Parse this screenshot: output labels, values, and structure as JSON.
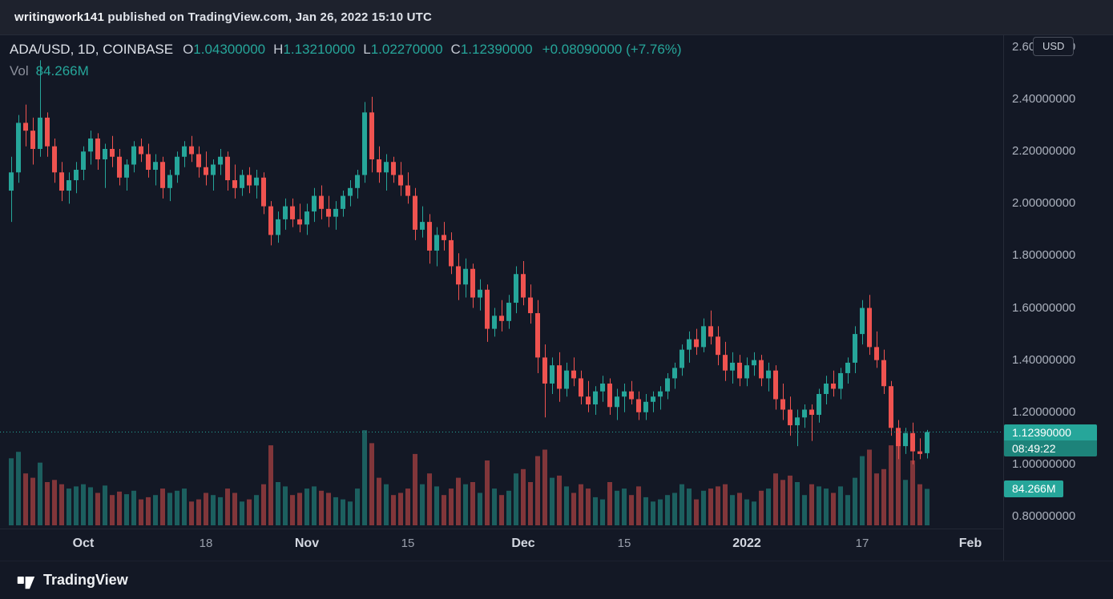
{
  "publish_bar": {
    "username": "writingwork141",
    "text_rest": " published on TradingView.com, Jan 26, 2022 15:10 UTC"
  },
  "header": {
    "symbol": "ADA/USD, 1D, COINBASE",
    "ohlc": [
      {
        "label": "O",
        "value": "1.04300000"
      },
      {
        "label": "H",
        "value": "1.13210000"
      },
      {
        "label": "L",
        "value": "1.02270000"
      },
      {
        "label": "C",
        "value": "1.12390000"
      }
    ],
    "change": "+0.08090000 (+7.76%)",
    "vol_label": "Vol",
    "vol_value": "84.266M"
  },
  "price_axis": {
    "currency_button": "USD",
    "price_badge": {
      "price": "1.12390000",
      "countdown": "08:49:22"
    },
    "volume_badge": "84.266M"
  },
  "footer": {
    "brand": "TradingView"
  },
  "colors": {
    "up": "#26a69a",
    "down": "#ef5350",
    "countdown_bg": "#1d837a",
    "background": "#131825",
    "topbar_background": "#1e222d",
    "axis_text": "#abb1bd"
  },
  "chart_data": {
    "type": "candlestick",
    "title": "ADA/USD, 1D, COINBASE",
    "symbol": "ADA/USD",
    "interval": "1D",
    "exchange": "COINBASE",
    "ylabel": "USD",
    "price_range": [
      0.8,
      2.6
    ],
    "last_close": 1.1239,
    "last_volume_label": "84.266M",
    "price_ticks": [
      {
        "label": "2.60000000",
        "price": 2.6
      },
      {
        "label": "2.40000000",
        "price": 2.4
      },
      {
        "label": "2.20000000",
        "price": 2.2
      },
      {
        "label": "2.00000000",
        "price": 2.0
      },
      {
        "label": "1.80000000",
        "price": 1.8
      },
      {
        "label": "1.60000000",
        "price": 1.6
      },
      {
        "label": "1.40000000",
        "price": 1.4
      },
      {
        "label": "1.20000000",
        "price": 1.2
      },
      {
        "label": "1.00000000",
        "price": 1.0
      },
      {
        "label": "0.80000000",
        "price": 0.8
      }
    ],
    "time_ticks": [
      {
        "label": "Oct",
        "index": 10,
        "major": true
      },
      {
        "label": "18",
        "index": 27,
        "major": false
      },
      {
        "label": "Nov",
        "index": 41,
        "major": true
      },
      {
        "label": "15",
        "index": 55,
        "major": false
      },
      {
        "label": "Dec",
        "index": 71,
        "major": true
      },
      {
        "label": "15",
        "index": 85,
        "major": false
      },
      {
        "label": "2022",
        "index": 102,
        "major": true
      },
      {
        "label": "17",
        "index": 118,
        "major": false
      },
      {
        "label": "Feb",
        "index": 133,
        "major": true
      }
    ],
    "candles_format": [
      "open",
      "high",
      "low",
      "close",
      "volume_millions"
    ],
    "candles": [
      [
        2.05,
        2.18,
        1.93,
        2.12,
        155
      ],
      [
        2.12,
        2.34,
        2.08,
        2.31,
        170
      ],
      [
        2.31,
        2.38,
        2.22,
        2.28,
        120
      ],
      [
        2.28,
        2.33,
        2.15,
        2.21,
        110
      ],
      [
        2.21,
        2.55,
        2.18,
        2.33,
        145
      ],
      [
        2.33,
        2.35,
        2.18,
        2.22,
        100
      ],
      [
        2.22,
        2.25,
        2.08,
        2.12,
        105
      ],
      [
        2.12,
        2.16,
        2.01,
        2.05,
        95
      ],
      [
        2.05,
        2.12,
        2.0,
        2.09,
        85
      ],
      [
        2.09,
        2.16,
        2.04,
        2.13,
        90
      ],
      [
        2.13,
        2.22,
        2.09,
        2.2,
        95
      ],
      [
        2.2,
        2.28,
        2.15,
        2.25,
        88
      ],
      [
        2.25,
        2.27,
        2.13,
        2.17,
        75
      ],
      [
        2.17,
        2.23,
        2.06,
        2.21,
        92
      ],
      [
        2.21,
        2.26,
        2.14,
        2.18,
        70
      ],
      [
        2.18,
        2.21,
        2.07,
        2.1,
        78
      ],
      [
        2.1,
        2.17,
        2.05,
        2.15,
        72
      ],
      [
        2.15,
        2.24,
        2.12,
        2.22,
        80
      ],
      [
        2.22,
        2.25,
        2.16,
        2.19,
        60
      ],
      [
        2.19,
        2.23,
        2.1,
        2.13,
        65
      ],
      [
        2.13,
        2.19,
        2.07,
        2.16,
        70
      ],
      [
        2.16,
        2.18,
        2.02,
        2.06,
        85
      ],
      [
        2.06,
        2.13,
        2.01,
        2.11,
        75
      ],
      [
        2.11,
        2.2,
        2.08,
        2.18,
        80
      ],
      [
        2.18,
        2.24,
        2.14,
        2.22,
        85
      ],
      [
        2.22,
        2.26,
        2.16,
        2.19,
        55
      ],
      [
        2.19,
        2.22,
        2.1,
        2.14,
        60
      ],
      [
        2.14,
        2.2,
        2.07,
        2.11,
        75
      ],
      [
        2.11,
        2.17,
        2.05,
        2.15,
        70
      ],
      [
        2.15,
        2.21,
        2.11,
        2.18,
        65
      ],
      [
        2.18,
        2.2,
        2.05,
        2.09,
        85
      ],
      [
        2.09,
        2.15,
        2.02,
        2.06,
        75
      ],
      [
        2.06,
        2.13,
        2.03,
        2.11,
        55
      ],
      [
        2.11,
        2.14,
        2.04,
        2.07,
        60
      ],
      [
        2.07,
        2.13,
        2.02,
        2.1,
        70
      ],
      [
        2.1,
        2.12,
        1.96,
        1.99,
        95
      ],
      [
        1.99,
        2.01,
        1.84,
        1.88,
        185
      ],
      [
        1.88,
        1.97,
        1.85,
        1.94,
        100
      ],
      [
        1.94,
        2.02,
        1.9,
        1.99,
        90
      ],
      [
        1.99,
        2.02,
        1.91,
        1.94,
        70
      ],
      [
        1.94,
        2.0,
        1.89,
        1.92,
        75
      ],
      [
        1.92,
        2.0,
        1.88,
        1.97,
        85
      ],
      [
        1.97,
        2.06,
        1.93,
        2.03,
        90
      ],
      [
        2.03,
        2.07,
        1.94,
        1.98,
        80
      ],
      [
        1.98,
        2.03,
        1.91,
        1.95,
        75
      ],
      [
        1.95,
        2.01,
        1.9,
        1.98,
        65
      ],
      [
        1.98,
        2.05,
        1.95,
        2.03,
        60
      ],
      [
        2.03,
        2.09,
        1.99,
        2.06,
        55
      ],
      [
        2.06,
        2.13,
        2.02,
        2.11,
        85
      ],
      [
        2.11,
        2.39,
        2.08,
        2.35,
        220
      ],
      [
        2.35,
        2.41,
        2.12,
        2.17,
        190
      ],
      [
        2.17,
        2.22,
        2.08,
        2.12,
        110
      ],
      [
        2.12,
        2.19,
        2.05,
        2.16,
        95
      ],
      [
        2.16,
        2.18,
        2.08,
        2.11,
        70
      ],
      [
        2.11,
        2.16,
        2.03,
        2.07,
        75
      ],
      [
        2.07,
        2.12,
        2.0,
        2.03,
        85
      ],
      [
        2.03,
        2.06,
        1.86,
        1.9,
        165
      ],
      [
        1.9,
        1.99,
        1.87,
        1.93,
        95
      ],
      [
        1.93,
        1.96,
        1.77,
        1.82,
        120
      ],
      [
        1.82,
        1.91,
        1.76,
        1.88,
        90
      ],
      [
        1.88,
        1.93,
        1.82,
        1.86,
        70
      ],
      [
        1.86,
        1.89,
        1.73,
        1.76,
        85
      ],
      [
        1.76,
        1.81,
        1.63,
        1.69,
        110
      ],
      [
        1.69,
        1.79,
        1.64,
        1.75,
        95
      ],
      [
        1.75,
        1.77,
        1.6,
        1.64,
        100
      ],
      [
        1.64,
        1.71,
        1.59,
        1.67,
        75
      ],
      [
        1.67,
        1.69,
        1.47,
        1.52,
        150
      ],
      [
        1.52,
        1.6,
        1.49,
        1.57,
        85
      ],
      [
        1.57,
        1.63,
        1.51,
        1.55,
        70
      ],
      [
        1.55,
        1.65,
        1.52,
        1.62,
        80
      ],
      [
        1.62,
        1.76,
        1.58,
        1.73,
        120
      ],
      [
        1.73,
        1.78,
        1.61,
        1.64,
        130
      ],
      [
        1.64,
        1.69,
        1.54,
        1.58,
        100
      ],
      [
        1.58,
        1.63,
        1.35,
        1.41,
        160
      ],
      [
        1.41,
        1.46,
        1.18,
        1.31,
        175
      ],
      [
        1.31,
        1.41,
        1.27,
        1.38,
        110
      ],
      [
        1.38,
        1.43,
        1.24,
        1.29,
        115
      ],
      [
        1.29,
        1.39,
        1.26,
        1.36,
        90
      ],
      [
        1.36,
        1.41,
        1.3,
        1.33,
        75
      ],
      [
        1.33,
        1.36,
        1.23,
        1.26,
        95
      ],
      [
        1.26,
        1.32,
        1.2,
        1.23,
        85
      ],
      [
        1.23,
        1.3,
        1.19,
        1.28,
        65
      ],
      [
        1.28,
        1.34,
        1.24,
        1.31,
        60
      ],
      [
        1.31,
        1.33,
        1.19,
        1.22,
        100
      ],
      [
        1.22,
        1.29,
        1.17,
        1.26,
        80
      ],
      [
        1.26,
        1.31,
        1.2,
        1.28,
        85
      ],
      [
        1.28,
        1.32,
        1.23,
        1.25,
        70
      ],
      [
        1.25,
        1.28,
        1.17,
        1.2,
        90
      ],
      [
        1.2,
        1.27,
        1.17,
        1.24,
        65
      ],
      [
        1.24,
        1.28,
        1.2,
        1.26,
        55
      ],
      [
        1.26,
        1.3,
        1.21,
        1.28,
        60
      ],
      [
        1.28,
        1.35,
        1.25,
        1.33,
        70
      ],
      [
        1.33,
        1.39,
        1.29,
        1.37,
        75
      ],
      [
        1.37,
        1.46,
        1.34,
        1.44,
        95
      ],
      [
        1.44,
        1.51,
        1.39,
        1.48,
        85
      ],
      [
        1.48,
        1.52,
        1.42,
        1.45,
        60
      ],
      [
        1.45,
        1.56,
        1.43,
        1.53,
        80
      ],
      [
        1.53,
        1.59,
        1.46,
        1.49,
        85
      ],
      [
        1.49,
        1.53,
        1.38,
        1.42,
        90
      ],
      [
        1.42,
        1.47,
        1.32,
        1.36,
        95
      ],
      [
        1.36,
        1.43,
        1.31,
        1.39,
        70
      ],
      [
        1.39,
        1.42,
        1.3,
        1.33,
        75
      ],
      [
        1.33,
        1.41,
        1.3,
        1.38,
        60
      ],
      [
        1.38,
        1.43,
        1.34,
        1.4,
        55
      ],
      [
        1.4,
        1.42,
        1.3,
        1.33,
        80
      ],
      [
        1.33,
        1.39,
        1.28,
        1.36,
        85
      ],
      [
        1.36,
        1.38,
        1.21,
        1.25,
        120
      ],
      [
        1.25,
        1.31,
        1.17,
        1.21,
        105
      ],
      [
        1.21,
        1.26,
        1.11,
        1.15,
        115
      ],
      [
        1.15,
        1.21,
        1.07,
        1.18,
        100
      ],
      [
        1.18,
        1.23,
        1.14,
        1.21,
        70
      ],
      [
        1.21,
        1.23,
        1.09,
        1.19,
        95
      ],
      [
        1.19,
        1.29,
        1.16,
        1.27,
        90
      ],
      [
        1.27,
        1.34,
        1.23,
        1.31,
        85
      ],
      [
        1.31,
        1.36,
        1.26,
        1.29,
        75
      ],
      [
        1.29,
        1.37,
        1.25,
        1.35,
        90
      ],
      [
        1.35,
        1.41,
        1.31,
        1.39,
        70
      ],
      [
        1.39,
        1.53,
        1.35,
        1.5,
        110
      ],
      [
        1.5,
        1.63,
        1.46,
        1.6,
        160
      ],
      [
        1.6,
        1.65,
        1.42,
        1.45,
        175
      ],
      [
        1.45,
        1.51,
        1.37,
        1.4,
        120
      ],
      [
        1.4,
        1.44,
        1.27,
        1.3,
        130
      ],
      [
        1.3,
        1.32,
        1.11,
        1.14,
        185
      ],
      [
        1.14,
        1.17,
        1.02,
        1.07,
        190
      ],
      [
        1.07,
        1.14,
        1.04,
        1.12,
        105
      ],
      [
        1.12,
        1.16,
        1.0,
        1.05,
        150
      ],
      [
        1.05,
        1.1,
        1.02,
        1.04,
        95
      ],
      [
        1.043,
        1.1321,
        1.0227,
        1.1239,
        84.266
      ]
    ]
  }
}
